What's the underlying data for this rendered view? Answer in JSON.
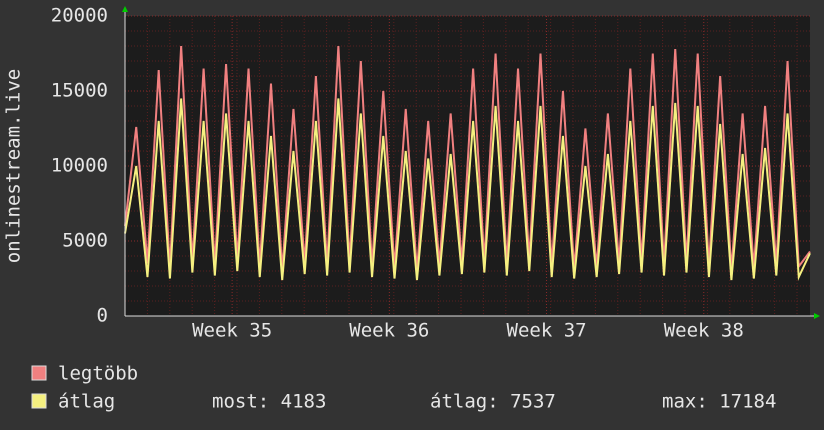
{
  "chart_data": {
    "type": "line",
    "ylabel": "onlinestream.live",
    "xlim": [
      0,
      30.5
    ],
    "ylim": [
      0,
      20000
    ],
    "yticks": [
      0,
      5000,
      10000,
      15000,
      20000
    ],
    "xticks": [
      {
        "value": 4.77,
        "label": "Week 35"
      },
      {
        "value": 11.77,
        "label": "Week 36"
      },
      {
        "value": 18.77,
        "label": "Week 37"
      },
      {
        "value": 25.77,
        "label": "Week 38"
      }
    ],
    "grid": true,
    "x": [
      0,
      0.5,
      1,
      1.5,
      2,
      2.5,
      3,
      3.5,
      4,
      4.5,
      5,
      5.5,
      6,
      6.5,
      7,
      7.5,
      8,
      8.5,
      9,
      9.5,
      10,
      10.5,
      11,
      11.5,
      12,
      12.5,
      13,
      13.5,
      14,
      14.5,
      15,
      15.5,
      16,
      16.5,
      17,
      17.5,
      18,
      18.5,
      19,
      19.5,
      20,
      20.5,
      21,
      21.5,
      22,
      22.5,
      23,
      23.5,
      24,
      24.5,
      25,
      25.5,
      26,
      26.5,
      27,
      27.5,
      28,
      28.5,
      29,
      29.5,
      30,
      30.5
    ],
    "series": [
      {
        "name": "legtöbb",
        "color": "#f08080",
        "values": [
          6000,
          12600,
          3500,
          16400,
          3200,
          18000,
          3600,
          16500,
          3400,
          16800,
          3700,
          16500,
          3300,
          15500,
          3000,
          13800,
          3500,
          16000,
          3400,
          18000,
          3600,
          17000,
          3300,
          15000,
          3200,
          13800,
          3000,
          13000,
          3400,
          13500,
          3500,
          16500,
          3600,
          17500,
          3400,
          16500,
          3700,
          17500,
          3300,
          15000,
          3100,
          12500,
          3200,
          13500,
          3500,
          16500,
          3600,
          17500,
          3400,
          17800,
          3600,
          17500,
          3300,
          16000,
          3000,
          13500,
          3200,
          14000,
          3400,
          17000,
          3300,
          4300
        ]
      },
      {
        "name": "átlag",
        "color": "#f5f080",
        "values": [
          5500,
          10000,
          2600,
          13000,
          2500,
          14500,
          2900,
          13000,
          2700,
          13500,
          3000,
          13000,
          2600,
          12000,
          2400,
          11000,
          2800,
          13000,
          2700,
          14500,
          2900,
          13500,
          2600,
          12000,
          2500,
          11000,
          2400,
          10500,
          2700,
          10800,
          2800,
          13000,
          2900,
          14000,
          2700,
          13000,
          3000,
          14000,
          2600,
          12000,
          2500,
          10000,
          2600,
          10800,
          2800,
          13000,
          2900,
          14000,
          2700,
          14200,
          2900,
          14000,
          2600,
          12800,
          2400,
          10800,
          2500,
          11200,
          2700,
          13500,
          2600,
          4183
        ]
      }
    ],
    "stats": [
      "most: 4183",
      "átlag: 7537",
      "max: 17184"
    ]
  }
}
